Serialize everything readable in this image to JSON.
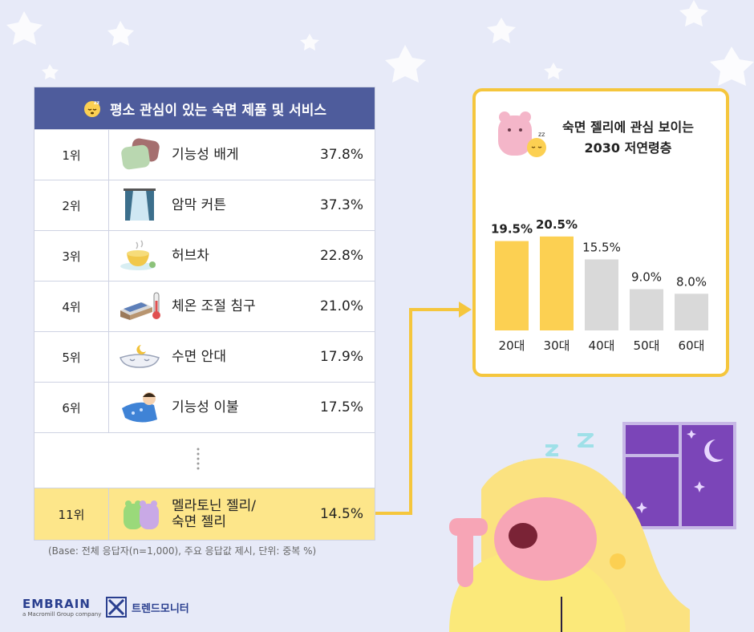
{
  "header": {
    "title": "평소 관심이 있는 숙면 제품 및 서비스"
  },
  "rows": [
    {
      "rank": "1위",
      "name": "기능성 배게",
      "pct": "37.8%",
      "icon": "pillow-icon"
    },
    {
      "rank": "2위",
      "name": "암막 커튼",
      "pct": "37.3%",
      "icon": "curtain-icon"
    },
    {
      "rank": "3위",
      "name": "허브차",
      "pct": "22.8%",
      "icon": "herb-tea-icon"
    },
    {
      "rank": "4위",
      "name": "체온 조절 침구",
      "pct": "21.0%",
      "icon": "bed-thermometer-icon"
    },
    {
      "rank": "5위",
      "name": "수면 안대",
      "pct": "17.9%",
      "icon": "sleep-mask-icon"
    },
    {
      "rank": "6위",
      "name": "기능성 이불",
      "pct": "17.5%",
      "icon": "blanket-icon"
    }
  ],
  "highlight": {
    "rank": "11위",
    "name_line1": "멜라토닌 젤리/",
    "name_line2": "숙면 젤리",
    "pct": "14.5%",
    "icon": "gummy-bear-icon"
  },
  "note": "(Base: 전체 응답자(n=1,000), 주요 응답값 제시, 단위: 중복 %)",
  "panel": {
    "title_line1": "숙면 젤리에 관심 보이는",
    "title_line2": "2030 저연령층"
  },
  "chart_data": {
    "type": "bar",
    "categories": [
      "20대",
      "30대",
      "40대",
      "50대",
      "60대"
    ],
    "values": [
      19.5,
      20.5,
      15.5,
      9.0,
      8.0
    ],
    "value_labels": [
      "19.5%",
      "20.5%",
      "15.5%",
      "9.0%",
      "8.0%"
    ],
    "highlighted": [
      true,
      true,
      false,
      false,
      false
    ],
    "colors": {
      "highlight": "#fcd052",
      "normal": "#d9d9d9"
    },
    "ylim": [
      0,
      21
    ]
  },
  "brand": {
    "logo": "EMBRAIN",
    "logo_sub": "a Macromill Group company",
    "partner": "트렌드모니터"
  },
  "colors": {
    "header_bg": "#4e5c9c",
    "accent_yellow": "#f5c63d",
    "highlight_row": "#fde68a",
    "background": "#e7eaf8"
  }
}
